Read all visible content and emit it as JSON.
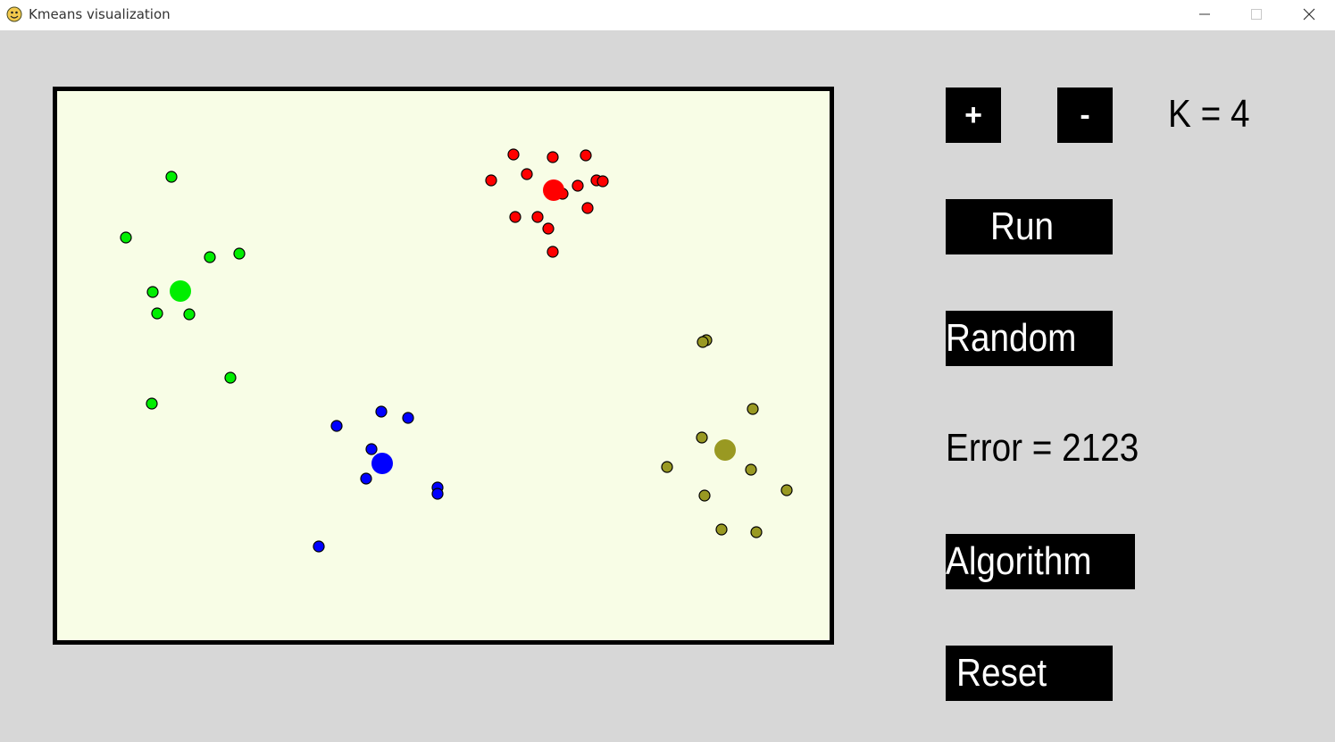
{
  "window": {
    "title": "Kmeans visualization",
    "icon": "python-snake-icon",
    "controls": {
      "minimize": "minimize-icon",
      "maximize": "maximize-icon",
      "close": "close-icon"
    }
  },
  "panel": {
    "plus_label": "+",
    "minus_label": "-",
    "k_label": "K = 4",
    "run_label": "Run",
    "random_label": "Random",
    "error_label": "Error = 2123",
    "algorithm_label": "Algorithm",
    "reset_label": "Reset"
  },
  "colors": {
    "background": "#d7d7d7",
    "canvas": "#f8fde6",
    "canvas_border": "#000000",
    "button_bg": "#000000",
    "button_text": "#ffffff"
  },
  "chart_data": {
    "type": "scatter",
    "xlim": [
      0,
      865
    ],
    "ylim": [
      0,
      615
    ],
    "clusters": [
      {
        "color": "#ff0000",
        "centroid": [
          556,
          111
        ],
        "points": [
          [
            511,
            71
          ],
          [
            555,
            74
          ],
          [
            592,
            72
          ],
          [
            526,
            93
          ],
          [
            486,
            100
          ],
          [
            566,
            115
          ],
          [
            583,
            106
          ],
          [
            604,
            100
          ],
          [
            611,
            101
          ],
          [
            594,
            131
          ],
          [
            513,
            141
          ],
          [
            538,
            141
          ],
          [
            550,
            154
          ],
          [
            555,
            180
          ]
        ]
      },
      {
        "color": "#00ee00",
        "centroid": [
          138,
          224
        ],
        "points": [
          [
            128,
            96
          ],
          [
            77,
            164
          ],
          [
            171,
            186
          ],
          [
            204,
            182
          ],
          [
            107,
            225
          ],
          [
            112,
            249
          ],
          [
            148,
            250
          ],
          [
            194,
            321
          ],
          [
            106,
            350
          ]
        ]
      },
      {
        "color": "#0000ff",
        "centroid": [
          364,
          417
        ],
        "points": [
          [
            363,
            359
          ],
          [
            393,
            366
          ],
          [
            313,
            375
          ],
          [
            352,
            401
          ],
          [
            346,
            434
          ],
          [
            426,
            444
          ],
          [
            426,
            451
          ],
          [
            293,
            510
          ]
        ]
      },
      {
        "color": "#999922",
        "centroid": [
          748,
          402
        ],
        "points": [
          [
            727,
            279
          ],
          [
            723,
            281
          ],
          [
            779,
            356
          ],
          [
            722,
            388
          ],
          [
            683,
            421
          ],
          [
            777,
            424
          ],
          [
            817,
            447
          ],
          [
            725,
            453
          ],
          [
            744,
            491
          ],
          [
            783,
            494
          ]
        ]
      }
    ]
  }
}
